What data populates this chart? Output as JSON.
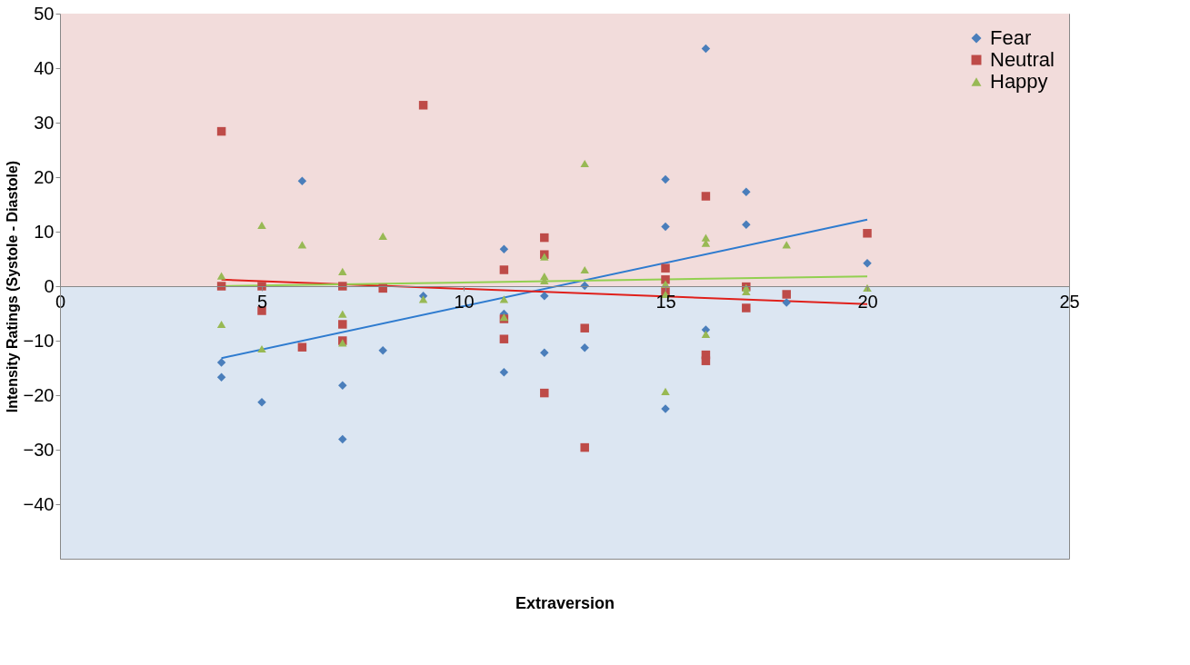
{
  "chart_data": {
    "type": "scatter",
    "xlabel": "Extraversion",
    "ylabel": "Intensity Ratings (Systole - Diastole)",
    "xlim": [
      0,
      25
    ],
    "xticks": [
      0,
      5,
      10,
      15,
      20,
      25
    ],
    "ylim": [
      -50,
      50
    ],
    "yticks": [
      -40,
      -30,
      -20,
      -10,
      0,
      10,
      20,
      30,
      40,
      50
    ],
    "grid": false,
    "legend": "top right",
    "bands": [
      {
        "axis": "y",
        "from": 0,
        "to": 50,
        "color": "#f2dcdb"
      },
      {
        "axis": "y",
        "from": -50,
        "to": 0,
        "color": "#dce6f2"
      }
    ],
    "series": [
      {
        "name": "Fear",
        "marker": "diamond",
        "color": "#4a7ebb",
        "x": [
          4,
          4,
          5,
          6,
          7,
          7,
          8,
          9,
          11,
          11,
          11,
          12,
          12,
          13,
          13,
          15,
          15,
          15,
          16,
          16,
          17,
          17,
          18,
          20
        ],
        "values": [
          -14,
          -16.7,
          -21.3,
          19.3,
          -18.2,
          -28.1,
          -11.8,
          -1.8,
          6.8,
          -5.1,
          -15.8,
          -1.8,
          -12.2,
          0.1,
          -11.3,
          19.6,
          10.9,
          -22.5,
          43.6,
          -8,
          17.3,
          11.3,
          -3,
          4.2
        ]
      },
      {
        "name": "Neutral",
        "marker": "square",
        "color": "#be4b48",
        "x": [
          4,
          4,
          5,
          5,
          6,
          7,
          7,
          7,
          8,
          9,
          11,
          11,
          11,
          12,
          12,
          12,
          13,
          13,
          15,
          15,
          15,
          16,
          16,
          16,
          17,
          17,
          18,
          20
        ],
        "values": [
          28.4,
          0,
          0,
          -4.5,
          -11.2,
          0,
          -7,
          -10,
          -0.4,
          33.2,
          3,
          -6,
          -9.7,
          8.9,
          5.8,
          -19.6,
          -7.7,
          -29.6,
          3.3,
          1.2,
          -1,
          16.5,
          -12.6,
          -13.7,
          -0.1,
          -4,
          -1.5,
          9.7
        ]
      },
      {
        "name": "Happy",
        "marker": "triangle",
        "color": "#98b954",
        "x": [
          4,
          4,
          5,
          5,
          6,
          7,
          7,
          7,
          8,
          9,
          11,
          11,
          12,
          12,
          12,
          13,
          13,
          15,
          15,
          15,
          16,
          16,
          16,
          17,
          17,
          18,
          20
        ],
        "values": [
          1.9,
          -7,
          11.2,
          -11.5,
          7.6,
          2.7,
          -5.1,
          -10.4,
          9.2,
          -2.4,
          -2.4,
          -5.7,
          5.4,
          1.8,
          1,
          22.5,
          3,
          0.4,
          -1.5,
          -19.3,
          8.9,
          7.9,
          -8.8,
          -0.3,
          -1,
          7.6,
          -0.3
        ]
      },
      {
        "type": "line",
        "line_style": "solid",
        "color": "#2e7bcf",
        "x": [
          4,
          20
        ],
        "values": [
          -13.2,
          12.2
        ]
      },
      {
        "type": "line",
        "line_style": "solid",
        "color": "#e0201b",
        "x": [
          4,
          20
        ],
        "values": [
          1.2,
          -3.3
        ]
      },
      {
        "type": "line",
        "line_style": "solid",
        "color": "#92d050",
        "x": [
          4,
          20
        ],
        "values": [
          0,
          1.8
        ]
      }
    ]
  }
}
